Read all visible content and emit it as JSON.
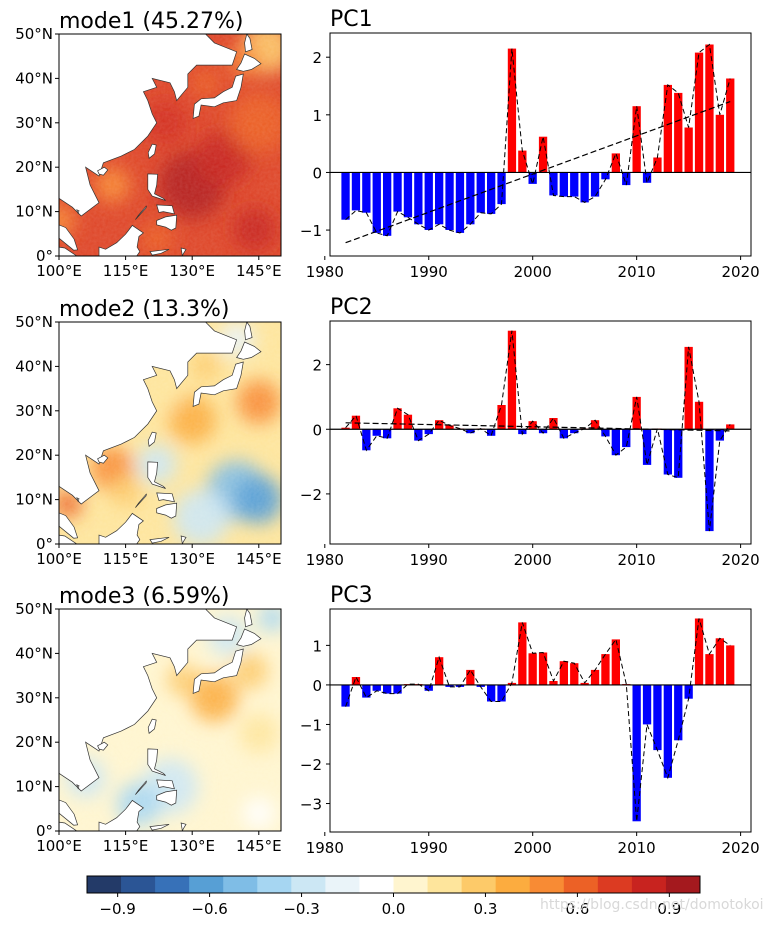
{
  "watermark": "https://blog.csdn.net/domotokoi",
  "colors": {
    "positive_bar": "#ff0000",
    "negative_bar": "#0000ff",
    "land": "#ffffff",
    "coast": "#333333"
  },
  "colorbar": {
    "ticks": [
      -0.9,
      -0.6,
      -0.3,
      0.0,
      0.3,
      0.6,
      0.9
    ],
    "tick_labels": [
      "−0.9",
      "−0.6",
      "−0.3",
      "0.0",
      "0.3",
      "0.6",
      "0.9"
    ],
    "colors": [
      "#233a68",
      "#2b5595",
      "#3771b8",
      "#579fd5",
      "#7fbde6",
      "#a6d6f2",
      "#cce7f4",
      "#eaf4f9",
      "#ffffff",
      "#fff5cf",
      "#fee59c",
      "#fdca69",
      "#fcac3f",
      "#f88b34",
      "#ec6126",
      "#dc3b22",
      "#c8231f",
      "#a4191e"
    ]
  },
  "maps": [
    {
      "title": "mode1 (45.27%)",
      "lat_ticks": [
        "50°N",
        "40°N",
        "30°N",
        "20°N",
        "10°N",
        "0°"
      ],
      "lon_ticks": [
        "100°E",
        "115°E",
        "130°E",
        "145°E"
      ]
    },
    {
      "title": "mode2 (13.3%)",
      "lat_ticks": [
        "50°N",
        "40°N",
        "30°N",
        "20°N",
        "10°N",
        "0°"
      ],
      "lon_ticks": [
        "100°E",
        "115°E",
        "130°E",
        "145°E"
      ]
    },
    {
      "title": "mode3 (6.59%)",
      "lat_ticks": [
        "50°N",
        "40°N",
        "30°N",
        "20°N",
        "10°N",
        "0°"
      ],
      "lon_ticks": [
        "100°E",
        "115°E",
        "130°E",
        "145°E"
      ]
    }
  ],
  "chart_data": [
    {
      "type": "bar",
      "title": "PC1",
      "xlabel": "",
      "ylabel": "",
      "years": [
        1982,
        1983,
        1984,
        1985,
        1986,
        1987,
        1988,
        1989,
        1990,
        1991,
        1992,
        1993,
        1994,
        1995,
        1996,
        1997,
        1998,
        1999,
        2000,
        2001,
        2002,
        2003,
        2004,
        2005,
        2006,
        2007,
        2008,
        2009,
        2010,
        2011,
        2012,
        2013,
        2014,
        2015,
        2016,
        2017,
        2018,
        2019
      ],
      "values": [
        -0.82,
        -0.66,
        -0.7,
        -1.05,
        -1.1,
        -0.68,
        -0.78,
        -0.9,
        -1.0,
        -0.9,
        -1.0,
        -1.05,
        -0.9,
        -0.7,
        -0.72,
        -0.55,
        2.15,
        0.38,
        -0.2,
        0.62,
        -0.4,
        -0.42,
        -0.42,
        -0.52,
        -0.42,
        -0.12,
        0.33,
        -0.22,
        1.15,
        -0.18,
        0.26,
        1.52,
        1.38,
        0.78,
        2.08,
        2.22,
        1.0,
        1.63
      ],
      "trend": {
        "start": [
          1982,
          -1.22
        ],
        "end": [
          2019,
          1.23
        ]
      },
      "xlim": [
        1980.5,
        2021
      ],
      "ylim": [
        -1.45,
        2.42
      ],
      "xticks": [
        1980,
        1990,
        2000,
        2010,
        2020
      ],
      "yticks": [
        -1,
        0,
        1,
        2
      ],
      "ytick_labels": [
        "−1",
        "0",
        "1",
        "2"
      ]
    },
    {
      "type": "bar",
      "title": "PC2",
      "xlabel": "",
      "ylabel": "",
      "years": [
        1982,
        1983,
        1984,
        1985,
        1986,
        1987,
        1988,
        1989,
        1990,
        1991,
        1992,
        1993,
        1994,
        1995,
        1996,
        1997,
        1998,
        1999,
        2000,
        2001,
        2002,
        2003,
        2004,
        2005,
        2006,
        2007,
        2008,
        2009,
        2010,
        2011,
        2012,
        2013,
        2014,
        2015,
        2016,
        2017,
        2018,
        2019
      ],
      "values": [
        0.05,
        0.42,
        -0.65,
        -0.2,
        -0.28,
        0.65,
        0.45,
        -0.35,
        -0.15,
        0.28,
        0.12,
        0.02,
        -0.12,
        0.02,
        -0.2,
        0.75,
        3.05,
        -0.15,
        0.25,
        -0.12,
        0.35,
        -0.28,
        -0.12,
        0.02,
        0.28,
        -0.22,
        -0.8,
        -0.55,
        1.0,
        -1.1,
        0.02,
        -1.4,
        -1.5,
        2.55,
        0.85,
        -3.15,
        -0.35,
        0.15
      ],
      "trend": {
        "start": [
          1982,
          0.2
        ],
        "end": [
          2019,
          -0.05
        ]
      },
      "xlim": [
        1980.5,
        2021
      ],
      "ylim": [
        -3.55,
        3.35
      ],
      "xticks": [
        1980,
        1990,
        2000,
        2010,
        2020
      ],
      "yticks": [
        -2,
        0,
        2
      ],
      "ytick_labels": [
        "−2",
        "0",
        "2"
      ]
    },
    {
      "type": "bar",
      "title": "PC3",
      "xlabel": "",
      "ylabel": "",
      "years": [
        1982,
        1983,
        1984,
        1985,
        1986,
        1987,
        1988,
        1989,
        1990,
        1991,
        1992,
        1993,
        1994,
        1995,
        1996,
        1997,
        1998,
        1999,
        2000,
        2001,
        2002,
        2003,
        2004,
        2005,
        2006,
        2007,
        2008,
        2009,
        2010,
        2011,
        2012,
        2013,
        2014,
        2015,
        2016,
        2017,
        2018,
        2019
      ],
      "values": [
        -0.55,
        0.2,
        -0.32,
        -0.15,
        -0.22,
        -0.22,
        0.02,
        0.02,
        -0.15,
        0.7,
        -0.05,
        -0.05,
        0.38,
        -0.05,
        -0.42,
        -0.42,
        0.05,
        1.58,
        0.8,
        0.82,
        0.1,
        0.6,
        0.55,
        0.05,
        0.38,
        0.78,
        1.15,
        0.02,
        -3.45,
        -1.0,
        -1.65,
        -2.35,
        -1.4,
        -0.35,
        1.68,
        0.78,
        1.18,
        1.0
      ],
      "trend": null,
      "xlim": [
        1980.5,
        2021
      ],
      "ylim": [
        -3.72,
        1.92
      ],
      "xticks": [
        1980,
        1990,
        2000,
        2010,
        2020
      ],
      "yticks": [
        -3,
        -2,
        -1,
        0,
        1
      ],
      "ytick_labels": [
        "−3",
        "−2",
        "−1",
        "0",
        "1"
      ]
    }
  ]
}
